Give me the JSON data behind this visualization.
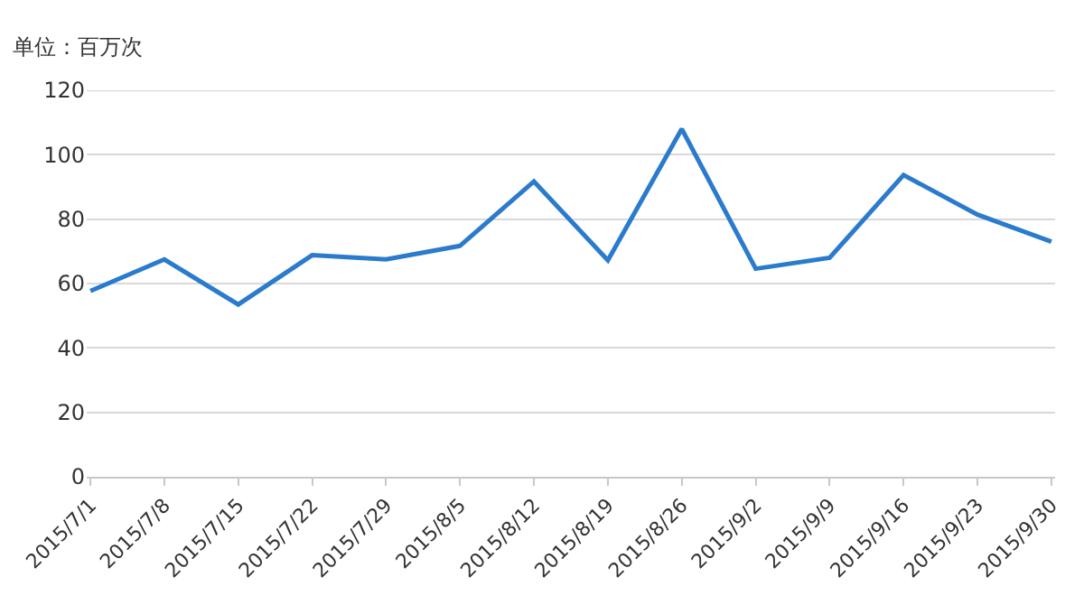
{
  "chart_data": {
    "type": "line",
    "ylabel": "单位：百万次",
    "categories": [
      "2015/7/1",
      "2015/7/8",
      "2015/7/15",
      "2015/7/22",
      "2015/7/29",
      "2015/8/5",
      "2015/8/12",
      "2015/8/19",
      "2015/8/26",
      "2015/9/2",
      "2015/9/9",
      "2015/9/16",
      "2015/9/23",
      "2015/9/30"
    ],
    "series": [
      {
        "color": "#2b7bcd",
        "values": [
          57.7,
          67.5,
          53.5,
          68.8,
          67.5,
          71.7,
          91.7,
          67.2,
          108,
          64.6,
          68,
          93.7,
          81.4,
          73
        ]
      }
    ],
    "ylim": [
      0,
      120
    ],
    "yticks": [
      0,
      20,
      40,
      60,
      80,
      100,
      120
    ],
    "grid": "y",
    "legend": false,
    "marker": "none",
    "line_style": "solid"
  }
}
